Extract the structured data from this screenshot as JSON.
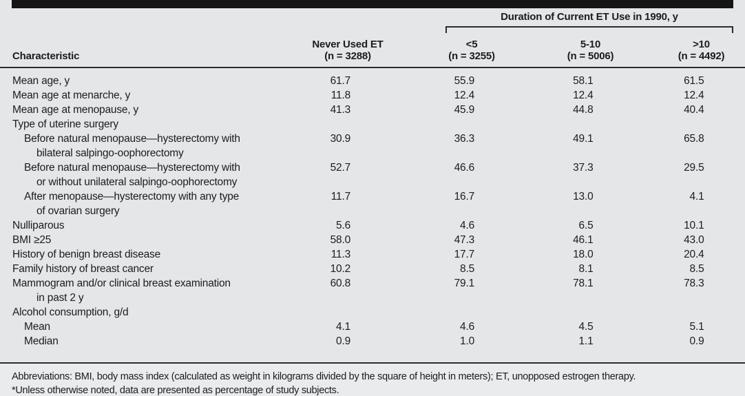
{
  "table": {
    "header": {
      "characteristic": "Characteristic",
      "never": {
        "line1": "Never Used ET",
        "line2": "(n = 3288)"
      },
      "duration_group": "Duration of Current ET Use in 1990, y",
      "duration_columns": [
        {
          "line1": "<5",
          "line2": "(n = 3255)"
        },
        {
          "line1": "5-10",
          "line2": "(n = 5006)"
        },
        {
          "line1": ">10",
          "line2": "(n = 4492)"
        }
      ]
    },
    "rows": [
      {
        "label": "Mean age, y",
        "label2": "",
        "indent": 0,
        "values": [
          "61.7",
          "55.9",
          "58.1",
          "61.5"
        ]
      },
      {
        "label": "Mean age at menarche, y",
        "label2": "",
        "indent": 0,
        "values": [
          "11.8",
          "12.4",
          "12.4",
          "12.4"
        ]
      },
      {
        "label": "Mean age at menopause, y",
        "label2": "",
        "indent": 0,
        "values": [
          "41.3",
          "45.9",
          "44.8",
          "40.4"
        ]
      },
      {
        "label": "Type of uterine surgery",
        "label2": "",
        "indent": 0,
        "values": [
          "",
          "",
          "",
          ""
        ]
      },
      {
        "label": "Before natural menopause—hysterectomy with",
        "label2": "bilateral salpingo-oophorectomy",
        "indent": 1,
        "values": [
          "30.9",
          "36.3",
          "49.1",
          "65.8"
        ]
      },
      {
        "label": "Before natural menopause—hysterectomy with",
        "label2": "or without unilateral salpingo-oophorectomy",
        "indent": 1,
        "values": [
          "52.7",
          "46.6",
          "37.3",
          "29.5"
        ]
      },
      {
        "label": "After menopause—hysterectomy with any type",
        "label2": "of ovarian surgery",
        "indent": 1,
        "values": [
          "11.7",
          "16.7",
          "13.0",
          "4.1"
        ]
      },
      {
        "label": "Nulliparous",
        "label2": "",
        "indent": 0,
        "values": [
          "5.6",
          "4.6",
          "6.5",
          "10.1"
        ]
      },
      {
        "label": "BMI ≥25",
        "label2": "",
        "indent": 0,
        "values": [
          "58.0",
          "47.3",
          "46.1",
          "43.0"
        ]
      },
      {
        "label": "History of benign breast disease",
        "label2": "",
        "indent": 0,
        "values": [
          "11.3",
          "17.7",
          "18.0",
          "20.4"
        ]
      },
      {
        "label": "Family history of breast cancer",
        "label2": "",
        "indent": 0,
        "values": [
          "10.2",
          "8.5",
          "8.1",
          "8.5"
        ]
      },
      {
        "label": "Mammogram and/or clinical breast examination",
        "label2": "in past 2 y",
        "indent": 0,
        "values": [
          "60.8",
          "79.1",
          "78.1",
          "78.3"
        ]
      },
      {
        "label": "Alcohol consumption, g/d",
        "label2": "",
        "indent": 0,
        "values": [
          "",
          "",
          "",
          ""
        ]
      },
      {
        "label": "Mean",
        "label2": "",
        "indent": 1,
        "values": [
          "4.1",
          "4.6",
          "4.5",
          "5.1"
        ]
      },
      {
        "label": "Median",
        "label2": "",
        "indent": 1,
        "values": [
          "0.9",
          "1.0",
          "1.1",
          "0.9"
        ]
      }
    ],
    "footnotes": [
      "Abbreviations: BMI, body mass index (calculated as weight in kilograms divided by the square of height in meters); ET, unopposed estrogen therapy.",
      "*Unless otherwise noted, data are presented as percentage of study subjects."
    ]
  }
}
